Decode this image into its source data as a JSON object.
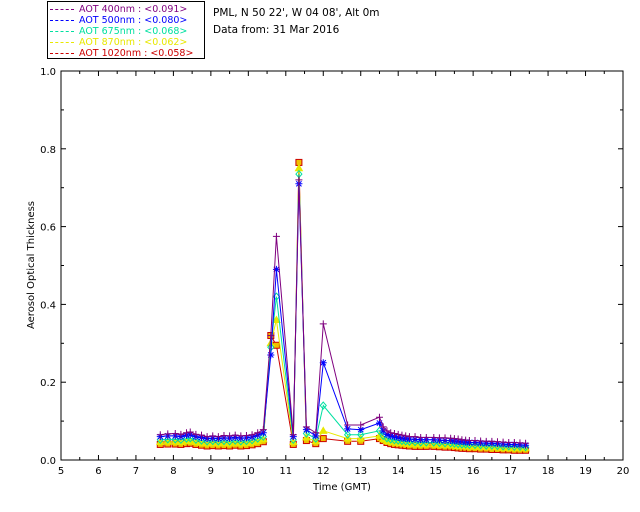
{
  "legend": [
    {
      "label": "AOT  400nm : <0.091>",
      "color": "#7f007f"
    },
    {
      "label": "AOT  500nm : <0.080>",
      "color": "#0000ff"
    },
    {
      "label": "AOT  675nm : <0.068>",
      "color": "#00e0a0"
    },
    {
      "label": "AOT  870nm : <0.062>",
      "color": "#e8e800"
    },
    {
      "label": "AOT 1020nm : <0.058>",
      "color": "#cc0000"
    }
  ],
  "info": {
    "location": "PML, N 50 22', W 04 08', Alt 0m",
    "date": "Data from: 31 Mar 2016"
  },
  "chart_data": {
    "type": "line",
    "title": "",
    "xlabel": "Time (GMT)",
    "ylabel": "Aerosol Optical Thickness",
    "xlim": [
      5,
      20
    ],
    "ylim": [
      0,
      1.0
    ],
    "xticks": [
      "5",
      "6",
      "7",
      "8",
      "9",
      "10",
      "11",
      "12",
      "13",
      "14",
      "15",
      "16",
      "17",
      "18",
      "19",
      "20"
    ],
    "yticks": [
      "0.0",
      "0.2",
      "0.4",
      "0.6",
      "0.8",
      "1.0"
    ],
    "x": [
      7.65,
      7.85,
      8.05,
      8.2,
      8.35,
      8.45,
      8.6,
      8.75,
      8.9,
      9.05,
      9.2,
      9.35,
      9.5,
      9.65,
      9.8,
      9.95,
      10.1,
      10.25,
      10.4,
      10.6,
      10.75,
      11.2,
      11.35,
      11.55,
      11.8,
      12.0,
      12.65,
      13.0,
      13.5,
      13.6,
      13.7,
      13.8,
      13.9,
      14.0,
      14.1,
      14.2,
      14.3,
      14.45,
      14.6,
      14.75,
      14.95,
      15.1,
      15.25,
      15.4,
      15.5,
      15.6,
      15.7,
      15.8,
      15.9,
      16.05,
      16.2,
      16.35,
      16.5,
      16.65,
      16.8,
      16.95,
      17.1,
      17.25,
      17.4
    ],
    "series": [
      {
        "name": "400nm",
        "color": "#7f007f",
        "marker": "plus",
        "values": [
          0.065,
          0.067,
          0.068,
          0.066,
          0.07,
          0.072,
          0.066,
          0.064,
          0.06,
          0.062,
          0.06,
          0.063,
          0.062,
          0.064,
          0.062,
          0.063,
          0.065,
          0.07,
          0.078,
          0.32,
          0.575,
          0.065,
          0.72,
          0.085,
          0.07,
          0.35,
          0.09,
          0.09,
          0.11,
          0.085,
          0.075,
          0.07,
          0.068,
          0.066,
          0.064,
          0.062,
          0.06,
          0.06,
          0.058,
          0.058,
          0.058,
          0.057,
          0.057,
          0.056,
          0.055,
          0.054,
          0.052,
          0.051,
          0.05,
          0.05,
          0.049,
          0.048,
          0.048,
          0.047,
          0.046,
          0.045,
          0.045,
          0.044,
          0.043
        ]
      },
      {
        "name": "500nm",
        "color": "#0000ff",
        "marker": "star",
        "values": [
          0.06,
          0.062,
          0.062,
          0.06,
          0.064,
          0.065,
          0.06,
          0.058,
          0.055,
          0.056,
          0.055,
          0.057,
          0.056,
          0.058,
          0.056,
          0.057,
          0.059,
          0.064,
          0.07,
          0.27,
          0.49,
          0.06,
          0.71,
          0.078,
          0.062,
          0.25,
          0.08,
          0.078,
          0.095,
          0.075,
          0.066,
          0.062,
          0.06,
          0.058,
          0.056,
          0.055,
          0.054,
          0.053,
          0.052,
          0.052,
          0.052,
          0.051,
          0.05,
          0.05,
          0.049,
          0.048,
          0.047,
          0.046,
          0.045,
          0.045,
          0.044,
          0.043,
          0.043,
          0.042,
          0.041,
          0.04,
          0.04,
          0.039,
          0.038
        ]
      },
      {
        "name": "675nm",
        "color": "#00e0a0",
        "marker": "diamond",
        "values": [
          0.052,
          0.053,
          0.053,
          0.052,
          0.055,
          0.056,
          0.052,
          0.05,
          0.048,
          0.049,
          0.048,
          0.049,
          0.048,
          0.05,
          0.048,
          0.049,
          0.051,
          0.055,
          0.06,
          0.29,
          0.42,
          0.052,
          0.735,
          0.068,
          0.055,
          0.14,
          0.065,
          0.065,
          0.075,
          0.062,
          0.056,
          0.053,
          0.051,
          0.05,
          0.049,
          0.048,
          0.047,
          0.046,
          0.045,
          0.045,
          0.045,
          0.044,
          0.043,
          0.043,
          0.042,
          0.041,
          0.04,
          0.04,
          0.039,
          0.039,
          0.038,
          0.037,
          0.037,
          0.036,
          0.035,
          0.035,
          0.034,
          0.034,
          0.033
        ]
      },
      {
        "name": "870nm",
        "color": "#e8e800",
        "marker": "triangle",
        "values": [
          0.046,
          0.047,
          0.047,
          0.046,
          0.048,
          0.049,
          0.046,
          0.044,
          0.042,
          0.043,
          0.042,
          0.043,
          0.042,
          0.044,
          0.042,
          0.043,
          0.045,
          0.048,
          0.053,
          0.3,
          0.36,
          0.046,
          0.75,
          0.058,
          0.048,
          0.075,
          0.055,
          0.055,
          0.062,
          0.054,
          0.049,
          0.047,
          0.045,
          0.044,
          0.043,
          0.042,
          0.041,
          0.04,
          0.04,
          0.04,
          0.04,
          0.039,
          0.038,
          0.038,
          0.037,
          0.036,
          0.035,
          0.035,
          0.034,
          0.034,
          0.033,
          0.033,
          0.032,
          0.032,
          0.031,
          0.031,
          0.03,
          0.03,
          0.03
        ]
      },
      {
        "name": "1020nm",
        "color": "#cc0000",
        "marker": "square",
        "values": [
          0.04,
          0.041,
          0.041,
          0.04,
          0.042,
          0.043,
          0.04,
          0.038,
          0.036,
          0.037,
          0.036,
          0.037,
          0.036,
          0.038,
          0.036,
          0.037,
          0.039,
          0.042,
          0.047,
          0.32,
          0.295,
          0.04,
          0.765,
          0.05,
          0.042,
          0.055,
          0.048,
          0.048,
          0.055,
          0.05,
          0.045,
          0.042,
          0.04,
          0.039,
          0.038,
          0.037,
          0.036,
          0.035,
          0.035,
          0.035,
          0.035,
          0.034,
          0.033,
          0.033,
          0.032,
          0.031,
          0.03,
          0.03,
          0.029,
          0.029,
          0.028,
          0.028,
          0.027,
          0.027,
          0.026,
          0.026,
          0.025,
          0.025,
          0.025
        ]
      }
    ]
  }
}
